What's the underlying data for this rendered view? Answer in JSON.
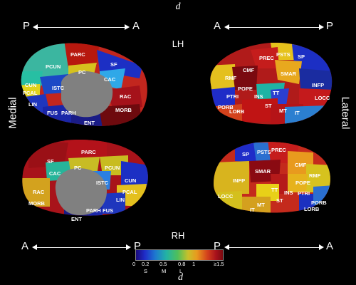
{
  "title": "d",
  "hemispheres": {
    "top": "LH",
    "bottom": "RH"
  },
  "views": {
    "left": "Medial",
    "right": "Lateral"
  },
  "directions": {
    "top_left": {
      "start": "P",
      "end": "A"
    },
    "top_right": {
      "start": "A",
      "end": "P"
    },
    "bottom_left": {
      "start": "A",
      "end": "P"
    },
    "bottom_right": {
      "start": "P",
      "end": "A"
    }
  },
  "colorbar": {
    "ticks": [
      "0",
      "0.2",
      "0.5",
      "0.8",
      "1",
      "≥1.5"
    ],
    "sub_labels": [
      "S",
      "M",
      "L"
    ],
    "label": "d",
    "colors": [
      "#1a0a7a",
      "#1f2cc8",
      "#1e78d0",
      "#22b3a4",
      "#4fbf5a",
      "#c8c02a",
      "#e89a1e",
      "#d4421c",
      "#a8121c",
      "#7a0a10"
    ]
  },
  "regions": {
    "lh_medial": [
      "PARC",
      "PCUN",
      "PC",
      "SF",
      "CAC",
      "CUN",
      "ISTC",
      "PCAL",
      "LIN",
      "FUS",
      "PARH",
      "ENT",
      "RAC",
      "MORB"
    ],
    "lh_lateral": [
      "PSTS",
      "SP",
      "PREC",
      "CMF",
      "SMAR",
      "RMF",
      "POPE",
      "INFP",
      "TT",
      "PTRI",
      "INS",
      "LOCC",
      "PORB",
      "ST",
      "LORB",
      "MT",
      "IT"
    ],
    "rh_medial": [
      "PARC",
      "SF",
      "PC",
      "PCUN",
      "CAC",
      "CUN",
      "ISTC",
      "RAC",
      "PCAL",
      "MORB",
      "LIN",
      "PARH",
      "FUS",
      "ENT"
    ],
    "rh_lateral": [
      "SP",
      "PSTS",
      "PREC",
      "CMF",
      "SMAR",
      "INFP",
      "RMF",
      "POPE",
      "TT",
      "LOCC",
      "INS",
      "PTRI",
      "ST",
      "MT",
      "IT",
      "PORB",
      "LORB"
    ]
  }
}
